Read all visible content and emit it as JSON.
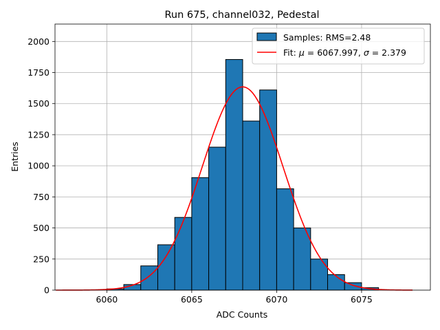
{
  "chart_data": {
    "type": "bar",
    "title": "Run 675, channel032, Pedestal",
    "xlabel": "ADC Counts",
    "ylabel": "Entries",
    "xlim": [
      6056.95,
      6079.05
    ],
    "ylim": [
      0,
      2140
    ],
    "grid": true,
    "legend_position": "top-right",
    "x_ticks": [
      6060,
      6065,
      6070,
      6075
    ],
    "y_ticks": [
      0,
      250,
      500,
      750,
      1000,
      1250,
      1500,
      1750,
      2000
    ],
    "histogram": {
      "name": "Samples: RMS=2.48",
      "color": "#1f77b4",
      "edgecolor": "#000000",
      "bin_edges": [
        6060,
        6061,
        6062,
        6063,
        6064,
        6065,
        6066,
        6067,
        6068,
        6069,
        6070,
        6071,
        6072,
        6073,
        6074,
        6075,
        6076
      ],
      "counts": [
        10,
        45,
        195,
        365,
        585,
        905,
        1150,
        1855,
        1360,
        1610,
        815,
        500,
        250,
        125,
        60,
        20
      ]
    },
    "fit": {
      "name": "Fit: μ = 6067.997, σ = 2.379",
      "color": "#ff0000",
      "type": "gaussian",
      "mu": 6067.997,
      "sigma": 2.379,
      "amplitude": 1635,
      "x_range": [
        6057,
        6078
      ]
    }
  }
}
